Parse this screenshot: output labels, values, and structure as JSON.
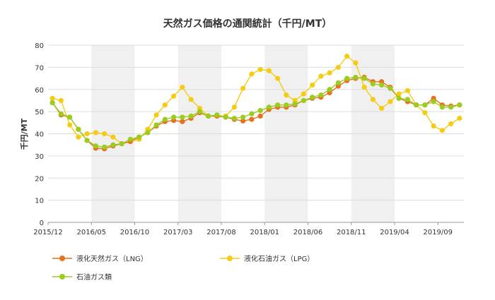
{
  "chart_data": {
    "type": "line",
    "title": "天然ガス価格の通関統計（千円/MT）",
    "ylabel": "千円/MT",
    "xlabel": "",
    "ylim": [
      0,
      80
    ],
    "yticks": [
      0,
      10,
      20,
      30,
      40,
      50,
      60,
      70,
      80
    ],
    "x_tick_labels": [
      "2015/12",
      "2016/05",
      "2016/10",
      "2017/03",
      "2017/08",
      "2018/01",
      "2018/06",
      "2018/11",
      "2019/04",
      "2019/09"
    ],
    "grid": "horizontal",
    "shaded_bands": "alternating years",
    "legend_position": "bottom",
    "x": [
      "2015/12",
      "2016/01",
      "2016/02",
      "2016/03",
      "2016/04",
      "2016/05",
      "2016/06",
      "2016/07",
      "2016/08",
      "2016/09",
      "2016/10",
      "2016/11",
      "2016/12",
      "2017/01",
      "2017/02",
      "2017/03",
      "2017/04",
      "2017/05",
      "2017/06",
      "2017/07",
      "2017/08",
      "2017/09",
      "2017/10",
      "2017/11",
      "2017/12",
      "2018/01",
      "2018/02",
      "2018/03",
      "2018/04",
      "2018/05",
      "2018/06",
      "2018/07",
      "2018/08",
      "2018/09",
      "2018/10",
      "2018/11",
      "2018/12",
      "2019/01",
      "2019/02",
      "2019/03",
      "2019/04",
      "2019/05",
      "2019/06",
      "2019/07",
      "2019/08",
      "2019/09",
      "2019/10",
      "2019/11"
    ],
    "series": [
      {
        "name": "液化天然ガス（LNG）",
        "color": "#e8711b",
        "values": [
          54.0,
          48.5,
          47.5,
          42.0,
          37.0,
          33.5,
          33.2,
          34.5,
          35.5,
          36.5,
          38.5,
          40.5,
          43.5,
          45.5,
          46.0,
          45.5,
          47.0,
          49.5,
          48.0,
          48.0,
          47.5,
          46.5,
          45.8,
          46.5,
          48.0,
          51.0,
          52.0,
          52.0,
          53.0,
          55.0,
          56.0,
          56.5,
          58.5,
          61.5,
          64.0,
          65.0,
          65.5,
          63.5,
          63.5,
          61.0,
          56.0,
          54.5,
          53.0,
          53.0,
          56.0,
          53.0,
          52.5,
          53.0
        ]
      },
      {
        "name": "液化石油ガス（LPG）",
        "color": "#f5cc15",
        "values": [
          56.0,
          55.0,
          44.0,
          38.5,
          40.0,
          40.5,
          40.0,
          38.5,
          35.5,
          36.5,
          37.5,
          42.0,
          48.5,
          53.0,
          57.0,
          61.0,
          55.5,
          51.5,
          48.0,
          48.0,
          48.0,
          52.0,
          60.5,
          67.0,
          69.0,
          68.5,
          65.0,
          57.5,
          55.0,
          58.0,
          62.0,
          66.0,
          67.5,
          70.0,
          75.0,
          72.0,
          61.0,
          55.5,
          51.5,
          54.5,
          58.0,
          59.5,
          53.0,
          49.5,
          43.5,
          41.5,
          44.5,
          47.0
        ]
      },
      {
        "name": "石油ガス類",
        "color": "#9acd1f",
        "values": [
          54.0,
          49.0,
          47.5,
          42.0,
          37.0,
          34.5,
          34.0,
          35.0,
          35.5,
          37.5,
          38.5,
          40.5,
          44.0,
          46.5,
          47.5,
          47.5,
          48.0,
          50.0,
          48.0,
          48.5,
          47.5,
          47.0,
          47.5,
          49.0,
          50.5,
          52.0,
          53.0,
          53.0,
          53.5,
          55.0,
          56.5,
          57.5,
          60.0,
          63.0,
          65.0,
          65.5,
          65.0,
          62.5,
          62.0,
          60.5,
          56.0,
          55.5,
          53.0,
          53.0,
          54.5,
          52.0,
          52.0,
          53.0
        ]
      }
    ]
  }
}
